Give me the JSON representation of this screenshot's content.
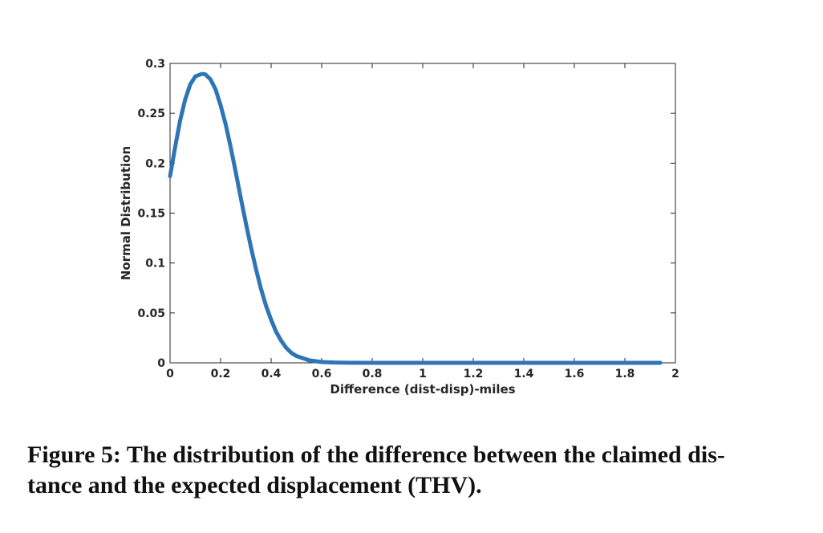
{
  "chart_data": {
    "type": "line",
    "xlabel": "Difference (dist-disp)-miles",
    "ylabel": "Normal Distribution",
    "xlim": [
      0,
      2
    ],
    "ylim": [
      0,
      0.3
    ],
    "xticks": [
      "0",
      "0.2",
      "0.4",
      "0.6",
      "0.8",
      "1",
      "1.2",
      "1.4",
      "1.6",
      "1.8",
      "2"
    ],
    "yticks": [
      "0",
      "0.05",
      "0.1",
      "0.15",
      "0.2",
      "0.25",
      "0.3"
    ],
    "grid": false,
    "series": [
      {
        "color": "#2e75b6",
        "x": [
          0.0,
          0.02,
          0.04,
          0.06,
          0.08,
          0.1,
          0.12,
          0.13,
          0.14,
          0.16,
          0.18,
          0.2,
          0.22,
          0.24,
          0.26,
          0.28,
          0.3,
          0.32,
          0.34,
          0.36,
          0.38,
          0.4,
          0.42,
          0.44,
          0.46,
          0.48,
          0.5,
          0.55,
          0.6,
          0.65,
          0.7,
          0.8,
          1.0,
          1.2,
          1.4,
          1.6,
          1.8,
          1.94
        ],
        "y": [
          0.187,
          0.216,
          0.243,
          0.264,
          0.279,
          0.287,
          0.289,
          0.2895,
          0.289,
          0.284,
          0.274,
          0.258,
          0.239,
          0.216,
          0.191,
          0.165,
          0.14,
          0.116,
          0.094,
          0.074,
          0.057,
          0.043,
          0.031,
          0.022,
          0.015,
          0.01,
          0.0068,
          0.0025,
          0.0008,
          0.0003,
          0.0001,
          0.0,
          0.0,
          0.0,
          0.0,
          0.0,
          0.0,
          0.0
        ]
      }
    ]
  },
  "caption": {
    "line1": "Figure 5: The distribution of the difference between the claimed dis-",
    "line2": "tance and the expected displacement (THV)."
  }
}
